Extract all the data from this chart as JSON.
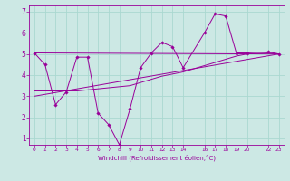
{
  "xlabel": "Windchill (Refroidissement éolien,°C)",
  "bg_color": "#cce8e4",
  "line_color": "#990099",
  "grid_color": "#aad8d0",
  "xlim": [
    -0.5,
    23.5
  ],
  "ylim": [
    0.7,
    7.3
  ],
  "yticks": [
    1,
    2,
    3,
    4,
    5,
    6,
    7
  ],
  "xticks": [
    0,
    1,
    2,
    3,
    4,
    5,
    6,
    7,
    8,
    9,
    10,
    11,
    12,
    13,
    14,
    16,
    17,
    18,
    19,
    20,
    22,
    23
  ],
  "series1_x": [
    0,
    1,
    2,
    3,
    4,
    5,
    6,
    7,
    8,
    9,
    10,
    11,
    12,
    13,
    14,
    16,
    17,
    18,
    19,
    20,
    22,
    23
  ],
  "series1_y": [
    5.05,
    4.5,
    2.6,
    3.2,
    4.85,
    4.85,
    2.2,
    1.65,
    0.7,
    2.4,
    4.35,
    5.05,
    5.55,
    5.35,
    4.35,
    6.0,
    6.9,
    6.8,
    5.05,
    5.05,
    5.1,
    5.0
  ],
  "series2_x": [
    0,
    23
  ],
  "series2_y": [
    5.05,
    5.0
  ],
  "series3_x": [
    0,
    4,
    5,
    6,
    7,
    8,
    9,
    10,
    11,
    12,
    13,
    14,
    16,
    17,
    18,
    19,
    20,
    22,
    23
  ],
  "series3_y": [
    3.25,
    3.25,
    3.3,
    3.35,
    3.4,
    3.45,
    3.5,
    3.65,
    3.8,
    3.95,
    4.05,
    4.15,
    4.45,
    4.6,
    4.75,
    4.9,
    5.0,
    5.05,
    5.0
  ],
  "series4_x": [
    0,
    23
  ],
  "series4_y": [
    3.0,
    5.0
  ]
}
